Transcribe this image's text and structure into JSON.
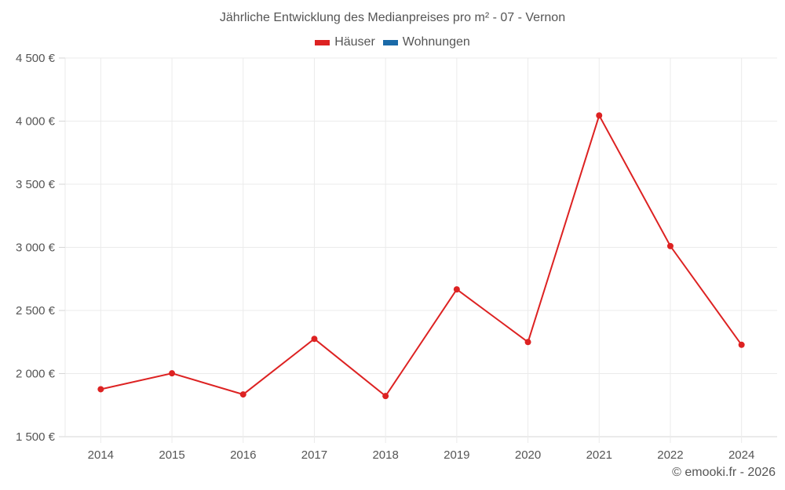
{
  "title": "Jährliche Entwicklung des Medianpreises pro m² - 07 - Vernon",
  "legend": [
    {
      "label": "Häuser",
      "color": "#dd2222"
    },
    {
      "label": "Wohnungen",
      "color": "#1a6aa8"
    }
  ],
  "credit": "© emooki.fr - 2026",
  "chart_data": {
    "type": "line",
    "title": "Jährliche Entwicklung des Medianpreises pro m² - 07 - Vernon",
    "xlabel": "",
    "ylabel": "",
    "categories": [
      "2014",
      "2015",
      "2016",
      "2017",
      "2018",
      "2019",
      "2020",
      "2021",
      "2022",
      "2024"
    ],
    "series": [
      {
        "name": "Häuser",
        "color": "#dd2222",
        "values": [
          1876,
          2002,
          1835,
          2275,
          1822,
          2667,
          2250,
          4045,
          3010,
          2228
        ]
      },
      {
        "name": "Wohnungen",
        "color": "#1a6aa8",
        "values": []
      }
    ],
    "ylim": [
      1500,
      4500
    ],
    "yticks": [
      1500,
      2000,
      2500,
      3000,
      3500,
      4000,
      4500
    ],
    "ytick_labels": [
      "1 500 €",
      "2 000 €",
      "2 500 €",
      "3 000 €",
      "3 500 €",
      "4 000 €",
      "4 500 €"
    ],
    "grid": true,
    "legend_position": "top"
  }
}
